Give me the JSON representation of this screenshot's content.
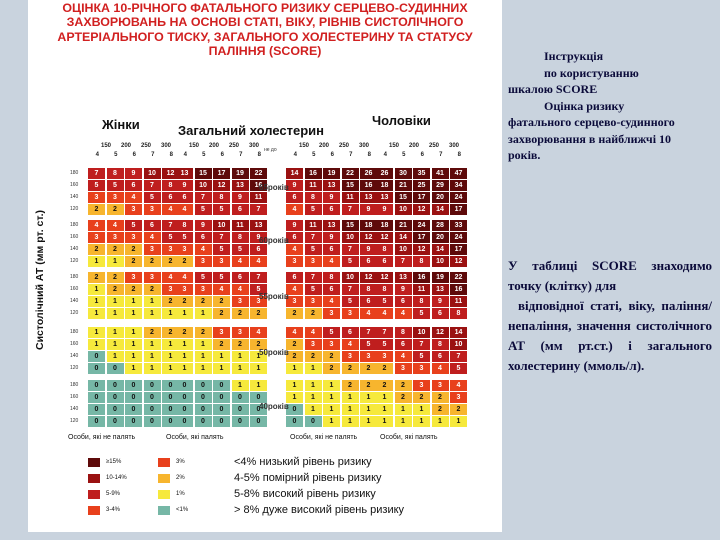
{
  "title": "ОЦІНКА 10-РІЧНОГО ФАТАЛЬНОГО РИЗИКУ СЕРЦЕВО-СУДИННИХ ЗАХВОРЮВАНЬ НА ОСНОВІ СТАТІ, ВІКУ, РІВНІВ СИСТОЛІЧНОГО АРТЕРІАЛЬНОГО ТИСКУ, ЗАГАЛЬНОГО ХОЛЕСТЕРИНУ ТА СТАТУСУ ПАЛІННЯ (SCORE)",
  "headers": {
    "women": "Жінки",
    "cholesterol": "Загальний холестерин",
    "men": "Чоловіки"
  },
  "y_axis_label": "Систолічний АТ (мм рт. ст.)",
  "chol_mgdl": [
    "150",
    "200",
    "250",
    "300"
  ],
  "chol_mmol": [
    "4",
    "5",
    "6",
    "7",
    "8"
  ],
  "mid_caption": "не до",
  "bp_levels": [
    "180",
    "160",
    "140",
    "120"
  ],
  "ages": [
    "65років",
    "60років",
    "55років",
    "50років",
    "40років"
  ],
  "footers": [
    "Особи, які не палять",
    "Особи, які палять",
    "Особи, які не палять",
    "Особи, які палять"
  ],
  "colors": {
    "lt1": "#76b7a6",
    "1": "#f6e93c",
    "2": "#f7b52e",
    "3_4": "#e8401c",
    "5_9": "#bf1e1e",
    "10_14": "#9a1111",
    "ge15": "#5e0a0a"
  },
  "tables": {
    "women_nonsmoke": [
      [
        [
          7,
          8,
          9,
          10,
          12
        ],
        [
          5,
          5,
          6,
          7,
          8
        ],
        [
          3,
          3,
          4,
          5,
          6
        ],
        [
          2,
          2,
          3,
          3,
          4
        ]
      ],
      [
        [
          4,
          4,
          5,
          6,
          7
        ],
        [
          3,
          3,
          3,
          4,
          5
        ],
        [
          2,
          2,
          2,
          3,
          3
        ],
        [
          1,
          1,
          2,
          2,
          2
        ]
      ],
      [
        [
          2,
          2,
          3,
          3,
          4
        ],
        [
          1,
          2,
          2,
          2,
          3
        ],
        [
          1,
          1,
          1,
          1,
          2
        ],
        [
          1,
          1,
          1,
          1,
          1
        ]
      ],
      [
        [
          1,
          1,
          1,
          2,
          2
        ],
        [
          1,
          1,
          1,
          1,
          1
        ],
        [
          0,
          1,
          1,
          1,
          1
        ],
        [
          0,
          0,
          1,
          1,
          1
        ]
      ],
      [
        [
          0,
          0,
          0,
          0,
          0
        ],
        [
          0,
          0,
          0,
          0,
          0
        ],
        [
          0,
          0,
          0,
          0,
          0
        ],
        [
          0,
          0,
          0,
          0,
          0
        ]
      ]
    ],
    "women_smoke": [
      [
        [
          13,
          15,
          17,
          19,
          22
        ],
        [
          9,
          10,
          12,
          13,
          16
        ],
        [
          6,
          7,
          8,
          9,
          11
        ],
        [
          4,
          5,
          5,
          6,
          7
        ]
      ],
      [
        [
          8,
          9,
          10,
          11,
          13
        ],
        [
          5,
          6,
          7,
          8,
          9
        ],
        [
          3,
          4,
          5,
          5,
          6
        ],
        [
          2,
          3,
          3,
          4,
          4
        ]
      ],
      [
        [
          4,
          5,
          5,
          6,
          7
        ],
        [
          3,
          3,
          4,
          4,
          5
        ],
        [
          2,
          2,
          2,
          3,
          3
        ],
        [
          1,
          1,
          2,
          2,
          2
        ]
      ],
      [
        [
          2,
          2,
          3,
          3,
          4
        ],
        [
          1,
          1,
          2,
          2,
          2
        ],
        [
          1,
          1,
          1,
          1,
          1
        ],
        [
          1,
          1,
          1,
          1,
          1
        ]
      ],
      [
        [
          0,
          0,
          0,
          1,
          1
        ],
        [
          0,
          0,
          0,
          0,
          0
        ],
        [
          0,
          0,
          0,
          0,
          0
        ],
        [
          0,
          0,
          0,
          0,
          0
        ]
      ]
    ],
    "men_nonsmoke": [
      [
        [
          14,
          16,
          19,
          22,
          26
        ],
        [
          9,
          11,
          13,
          15,
          16
        ],
        [
          6,
          8,
          9,
          11,
          13
        ],
        [
          4,
          5,
          6,
          7,
          9
        ]
      ],
      [
        [
          9,
          11,
          13,
          15,
          18
        ],
        [
          6,
          7,
          9,
          10,
          12
        ],
        [
          4,
          5,
          6,
          7,
          9
        ],
        [
          3,
          3,
          4,
          5,
          6
        ]
      ],
      [
        [
          6,
          7,
          8,
          10,
          12
        ],
        [
          4,
          5,
          6,
          7,
          8
        ],
        [
          3,
          3,
          4,
          5,
          6
        ],
        [
          2,
          2,
          3,
          3,
          4
        ]
      ],
      [
        [
          4,
          4,
          5,
          6,
          7
        ],
        [
          2,
          3,
          3,
          4,
          5
        ],
        [
          2,
          2,
          2,
          3,
          3
        ],
        [
          1,
          1,
          2,
          2,
          2
        ]
      ],
      [
        [
          1,
          1,
          1,
          2,
          2
        ],
        [
          1,
          1,
          1,
          1,
          1
        ],
        [
          0,
          1,
          1,
          1,
          1
        ],
        [
          0,
          0,
          1,
          1,
          1
        ]
      ]
    ],
    "men_smoke": [
      [
        [
          26,
          30,
          35,
          41,
          47
        ],
        [
          18,
          21,
          25,
          29,
          34
        ],
        [
          13,
          15,
          17,
          20,
          24
        ],
        [
          9,
          10,
          12,
          14,
          17
        ]
      ],
      [
        [
          18,
          21,
          24,
          28,
          33
        ],
        [
          12,
          14,
          17,
          20,
          24
        ],
        [
          8,
          10,
          12,
          14,
          17
        ],
        [
          6,
          7,
          8,
          10,
          12
        ]
      ],
      [
        [
          12,
          13,
          16,
          19,
          22
        ],
        [
          8,
          9,
          11,
          13,
          16
        ],
        [
          5,
          6,
          8,
          9,
          11
        ],
        [
          4,
          4,
          5,
          6,
          8
        ]
      ],
      [
        [
          7,
          8,
          10,
          12,
          14
        ],
        [
          5,
          6,
          7,
          8,
          10
        ],
        [
          3,
          4,
          5,
          6,
          7
        ],
        [
          2,
          3,
          3,
          4,
          5
        ]
      ],
      [
        [
          2,
          2,
          3,
          3,
          4
        ],
        [
          1,
          2,
          2,
          2,
          3
        ],
        [
          1,
          1,
          1,
          2,
          2
        ],
        [
          1,
          1,
          1,
          1,
          1
        ]
      ]
    ]
  },
  "legend": [
    {
      "small": "≥15%",
      "mid": "3%",
      "text": "<4%   низький рівень ризику",
      "sw1": "#5e0a0a",
      "sw2": "#e8401c"
    },
    {
      "small": "10-14%",
      "mid": "2%",
      "text": "4-5%   помірний рівень ризику",
      "sw1": "#9a1111",
      "sw2": "#f7b52e"
    },
    {
      "small": "5-9%",
      "mid": "1%",
      "text": "5-8%   високий рівень ризику",
      "sw1": "#bf1e1e",
      "sw2": "#f6e93c"
    },
    {
      "small": "3-4%",
      "mid": "<1%",
      "text": "> 8%   дуже високий рівень ризику",
      "sw1": "#e8401c",
      "sw2": "#76b7a6"
    }
  ],
  "instruction": {
    "line1": "Інструкція",
    "line2": "по користуванню",
    "line3": "шкалою SCORE",
    "line4": "Оцінка ризику",
    "line5": "фатального серцево-судинного захворювання в найближчі 10 років."
  },
  "body_text": {
    "p1": "У таблиці SCORE знаходимо точку (клітку) для",
    "p2": "відповідної статі, віку, паління/непаління, значення систолічного АТ (мм рт.ст.) і загального холестерину (ммоль/л)."
  }
}
